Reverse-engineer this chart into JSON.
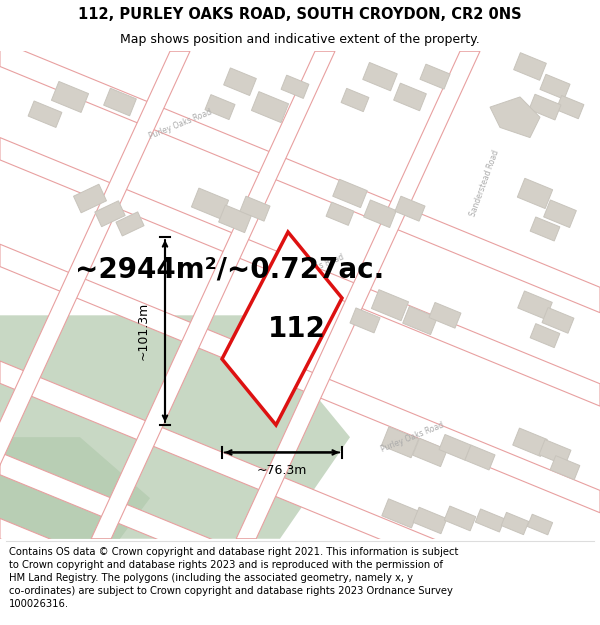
{
  "title_line1": "112, PURLEY OAKS ROAD, SOUTH CROYDON, CR2 0NS",
  "title_line2": "Map shows position and indicative extent of the property.",
  "area_text": "~2944m²/~0.727ac.",
  "property_number": "112",
  "dim_width": "~76.3m",
  "dim_height": "~101.3m",
  "footer_text": "Contains OS data © Crown copyright and database right 2021. This information is subject to Crown copyright and database rights 2023 and is reproduced with the permission of HM Land Registry. The polygons (including the associated geometry, namely x, y co-ordinates) are subject to Crown copyright and database rights 2023 Ordnance Survey 100026316.",
  "map_bg": "#f7f4f0",
  "road_edge": "#e8a0a0",
  "road_fill": "#ffffff",
  "block_fill": "#d4d0c8",
  "block_edge": "#c8c4bc",
  "green_fill": "#c8d8c4",
  "green_edge": "none",
  "highlight_color": "#dd1111",
  "property_fill": "#ffffff",
  "footer_bg": "#ffffff",
  "title_fontsize": 10.5,
  "subtitle_fontsize": 9,
  "area_fontsize": 20,
  "number_fontsize": 20,
  "dim_fontsize": 9,
  "footer_fontsize": 7.2,
  "road_label_color": "#aaaaaa",
  "road_label_size": 5.5
}
